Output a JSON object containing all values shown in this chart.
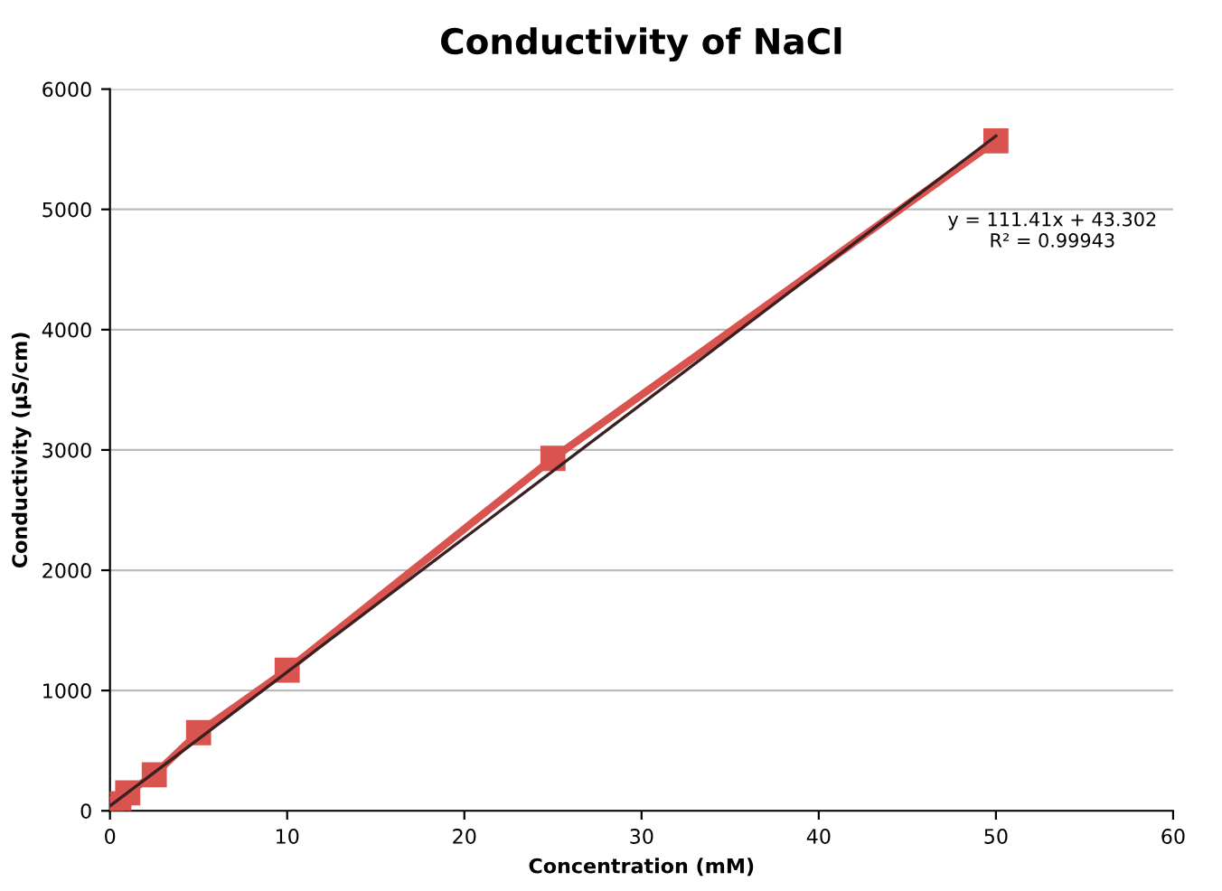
{
  "chart_data": {
    "type": "line",
    "title": "Conductivity of NaCl",
    "xlabel": "Concentration (mM)",
    "ylabel": "Conductivity (µS/cm)",
    "series": [
      {
        "color": "#d9534f",
        "marker": "square",
        "x": [
          0.1,
          0.5,
          1,
          2.5,
          5,
          10,
          25,
          50
        ],
        "values": [
          20,
          60,
          150,
          300,
          650,
          1170,
          2930,
          5570
        ]
      },
      {
        "color": "#3a2020",
        "marker": "none",
        "x": [
          0,
          50
        ],
        "values": [
          40,
          5610
        ]
      }
    ],
    "annotations": [
      "y = 111.41x + 43.302\nR² = 0.99943"
    ],
    "xlim": [
      0,
      60
    ],
    "xticks": [
      0,
      10,
      20,
      30,
      40,
      50,
      60
    ],
    "ylim": [
      0,
      6000
    ],
    "yticks": [
      0,
      1000,
      2000,
      3000,
      4000,
      5000,
      6000
    ],
    "grid": "y",
    "legend": false
  }
}
